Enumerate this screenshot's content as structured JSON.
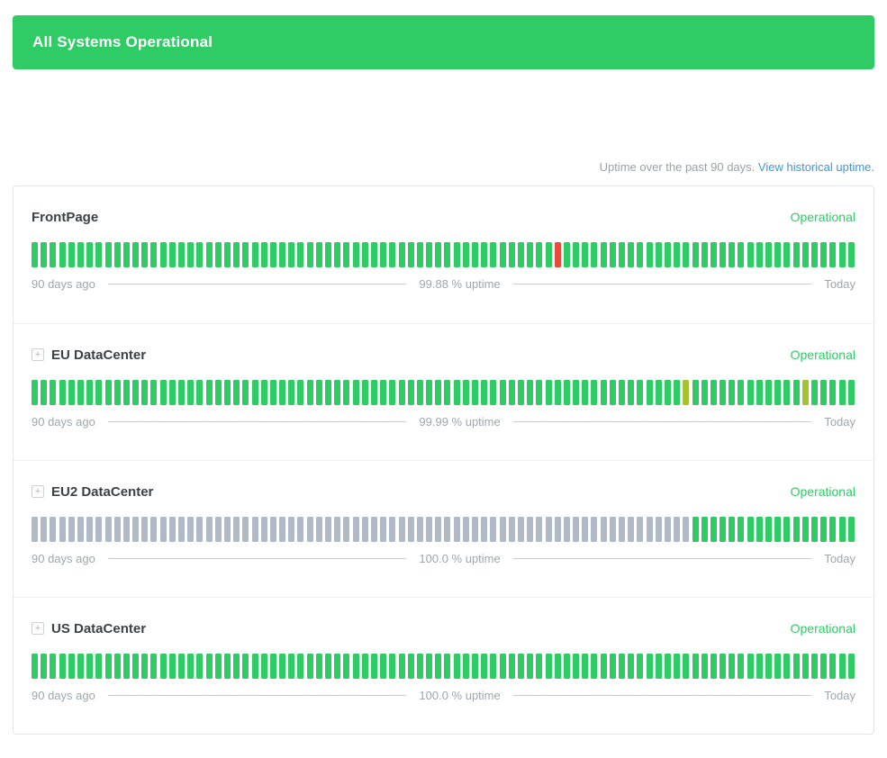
{
  "banner": {
    "label": "All Systems Operational",
    "color": "#2fcc66"
  },
  "uptime_header": {
    "text": "Uptime over the past 90 days.",
    "link_label": "View historical uptime."
  },
  "icons": {
    "expand_plus": "+"
  },
  "bar_colors": {
    "operational": "#2fcc66",
    "major_outage": "#e74c3c",
    "degraded": "#a4c32e",
    "no_data": "#b0bac6"
  },
  "days_shown": 90,
  "services": [
    {
      "name": "FrontPage",
      "expandable": false,
      "status": "Operational",
      "uptime_label": "99.88 % uptime",
      "left_label": "90 days ago",
      "right_label": "Today",
      "bars": {
        "total": 90,
        "segments": [
          {
            "status": "operational",
            "count": 57
          },
          {
            "status": "major_outage",
            "count": 1
          },
          {
            "status": "operational",
            "count": 32
          }
        ]
      }
    },
    {
      "name": "EU DataCenter",
      "expandable": true,
      "status": "Operational",
      "uptime_label": "99.99 % uptime",
      "left_label": "90 days ago",
      "right_label": "Today",
      "bars": {
        "total": 90,
        "segments": [
          {
            "status": "operational",
            "count": 71
          },
          {
            "status": "degraded",
            "count": 1
          },
          {
            "status": "operational",
            "count": 12
          },
          {
            "status": "degraded",
            "count": 1
          },
          {
            "status": "operational",
            "count": 5
          }
        ]
      }
    },
    {
      "name": "EU2 DataCenter",
      "expandable": true,
      "status": "Operational",
      "uptime_label": "100.0 % uptime",
      "left_label": "90 days ago",
      "right_label": "Today",
      "bars": {
        "total": 90,
        "segments": [
          {
            "status": "no_data",
            "count": 72
          },
          {
            "status": "operational",
            "count": 18
          }
        ]
      }
    },
    {
      "name": "US DataCenter",
      "expandable": true,
      "status": "Operational",
      "uptime_label": "100.0 % uptime",
      "left_label": "90 days ago",
      "right_label": "Today",
      "bars": {
        "total": 90,
        "segments": [
          {
            "status": "operational",
            "count": 90
          }
        ]
      }
    }
  ]
}
